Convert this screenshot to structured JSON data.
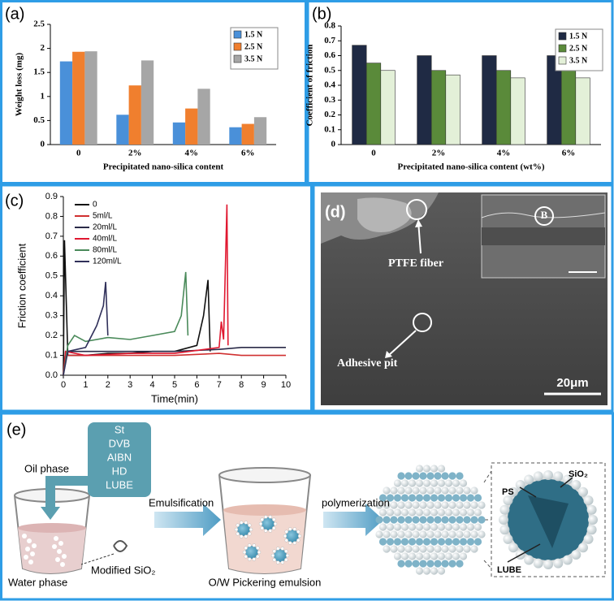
{
  "chart_data": [
    {
      "type": "bar",
      "panel": "(a)",
      "xlabel": "Precipitated nano-silica content",
      "ylabel": "Weight loss (mg)",
      "categories": [
        "0",
        "2%",
        "4%",
        "6%"
      ],
      "series": [
        {
          "name": "1.5 N",
          "color": "#4a90d9",
          "values": [
            1.73,
            0.62,
            0.46,
            0.36
          ]
        },
        {
          "name": "2.5 N",
          "color": "#f07f2e",
          "values": [
            1.93,
            1.23,
            0.75,
            0.43
          ]
        },
        {
          "name": "3.5 N",
          "color": "#a6a6a6",
          "values": [
            1.94,
            1.75,
            1.16,
            0.57
          ]
        }
      ],
      "ylim": [
        0,
        2.5
      ],
      "yticks": [
        0,
        0.5,
        1,
        1.5,
        2,
        2.5
      ],
      "legend": "upper right"
    },
    {
      "type": "bar",
      "panel": "(b)",
      "xlabel": "Precipitated nano-silica content (wt%)",
      "ylabel": "Coefficient of friction",
      "categories": [
        "0",
        "2%",
        "4%",
        "6%"
      ],
      "series": [
        {
          "name": "1.5 N",
          "color": "#1f2a44",
          "values": [
            0.67,
            0.6,
            0.6,
            0.6
          ]
        },
        {
          "name": "2.5 N",
          "color": "#5a8a3a",
          "values": [
            0.55,
            0.5,
            0.5,
            0.5
          ]
        },
        {
          "name": "3.5 N",
          "color": "#e3f0d8",
          "values": [
            0.5,
            0.47,
            0.45,
            0.45
          ]
        }
      ],
      "ylim": [
        0,
        0.8
      ],
      "yticks": [
        0,
        0.1,
        0.2,
        0.3,
        0.4,
        0.5,
        0.6,
        0.7,
        0.8
      ],
      "legend": "upper right"
    },
    {
      "type": "line",
      "panel": "(c)",
      "xlabel": "Time(min)",
      "ylabel": "Friction coefficient",
      "series": [
        {
          "name": "0",
          "color": "#111111",
          "x": [
            0,
            0.05,
            0.2,
            1,
            2,
            3,
            4,
            5,
            6,
            6.3,
            6.5,
            6.6
          ],
          "values": [
            0,
            0.68,
            0.1,
            0.1,
            0.11,
            0.11,
            0.12,
            0.12,
            0.15,
            0.3,
            0.48,
            0.12
          ]
        },
        {
          "name": "5ml/L",
          "color": "#d03030",
          "x": [
            0,
            0.1,
            1,
            3,
            5,
            7,
            8,
            10
          ],
          "values": [
            0,
            0.1,
            0.1,
            0.1,
            0.1,
            0.11,
            0.1,
            0.1
          ]
        },
        {
          "name": "20ml/L",
          "color": "#2a2a48",
          "x": [
            0,
            0.1,
            1,
            3,
            5,
            7,
            8,
            10
          ],
          "values": [
            0,
            0.12,
            0.12,
            0.12,
            0.12,
            0.13,
            0.14,
            0.14
          ]
        },
        {
          "name": "40ml/L",
          "color": "#e01830",
          "x": [
            0,
            0.1,
            1,
            3,
            5,
            7,
            7.1,
            7.2,
            7.35,
            7.4
          ],
          "values": [
            0,
            0.12,
            0.1,
            0.11,
            0.11,
            0.14,
            0.27,
            0.18,
            0.86,
            0.15
          ]
        },
        {
          "name": "80ml/L",
          "color": "#4a8a5a",
          "x": [
            0,
            0.2,
            0.5,
            1,
            2,
            3,
            4,
            5,
            5.3,
            5.5,
            5.6
          ],
          "values": [
            0,
            0.15,
            0.2,
            0.17,
            0.19,
            0.18,
            0.2,
            0.22,
            0.3,
            0.52,
            0.2
          ]
        },
        {
          "name": "120ml/L",
          "color": "#30305a",
          "x": [
            0,
            0.2,
            1,
            1.5,
            1.8,
            1.9,
            2
          ],
          "values": [
            0,
            0.12,
            0.14,
            0.25,
            0.35,
            0.47,
            0.2
          ]
        }
      ],
      "xlim": [
        0,
        10
      ],
      "xticks": [
        0,
        1,
        2,
        3,
        4,
        5,
        6,
        7,
        8,
        9,
        10
      ],
      "ylim": [
        0,
        0.9
      ],
      "yticks": [
        {
          "value": 0,
          "label": "0.0"
        },
        0.1,
        0.2,
        0.3,
        0.4,
        0.5,
        0.6,
        0.7,
        0.8,
        0.9
      ],
      "legend": "upper left"
    }
  ],
  "panel_d": {
    "label": "(d)",
    "fiber": "PTFE fiber",
    "pit": "Adhesive pit",
    "inset_mark": "B",
    "scale_bar": "20μm"
  },
  "panel_e": {
    "label": "(e)",
    "oil_phase": "Oil phase",
    "ingredients": [
      "St",
      "DVB",
      "AIBN",
      "HD",
      "LUBE"
    ],
    "water_phase": "Water phase",
    "silica": "Modified SiO₂",
    "step1": "Emulsification",
    "step2": "polymerization",
    "emulsion": "O/W Pickering emulsion",
    "ps": "PS",
    "sio2": "SiO₂",
    "lube": "LUBE"
  }
}
